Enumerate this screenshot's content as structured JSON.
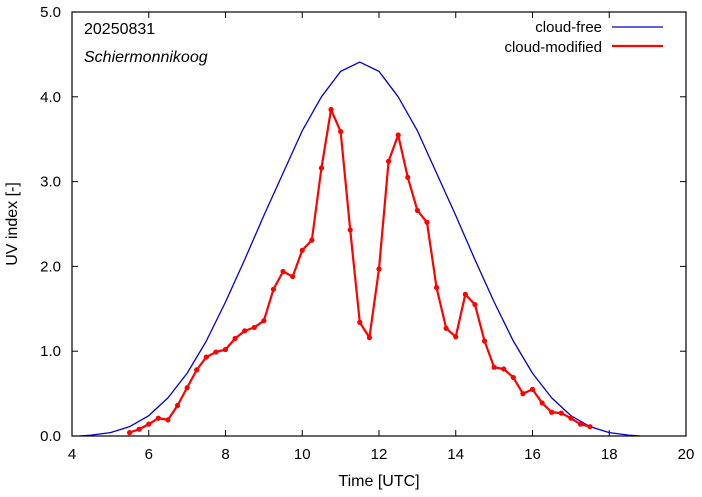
{
  "chart_data": {
    "type": "line",
    "xlabel": "Time  [UTC]",
    "ylabel": "UV index  [-]",
    "xlim": [
      4,
      20
    ],
    "ylim": [
      0,
      5
    ],
    "xticks": [
      4,
      6,
      8,
      10,
      12,
      14,
      16,
      18,
      20
    ],
    "yticks": [
      0,
      1,
      2,
      3,
      4,
      5
    ],
    "ytick_labels": [
      "0.0",
      "1.0",
      "2.0",
      "3.0",
      "4.0",
      "5.0"
    ],
    "grid": false,
    "legend_position": "top-right",
    "annotations": [
      "20250831",
      "Schiermonnikoog"
    ],
    "series": [
      {
        "name": "cloud-free",
        "color": "#0000cc",
        "style": "line",
        "x": [
          4.2,
          4.5,
          5.0,
          5.5,
          6.0,
          6.5,
          7.0,
          7.5,
          8.0,
          8.5,
          9.0,
          9.5,
          10.0,
          10.5,
          11.0,
          11.5,
          12.0,
          12.5,
          13.0,
          13.5,
          14.0,
          14.5,
          15.0,
          15.5,
          16.0,
          16.5,
          17.0,
          17.5,
          18.0,
          18.5,
          18.8
        ],
        "y": [
          0.0,
          0.01,
          0.04,
          0.11,
          0.24,
          0.45,
          0.74,
          1.12,
          1.58,
          2.08,
          2.6,
          3.1,
          3.6,
          4.0,
          4.3,
          4.41,
          4.3,
          4.0,
          3.6,
          3.1,
          2.6,
          2.08,
          1.58,
          1.12,
          0.74,
          0.45,
          0.24,
          0.11,
          0.04,
          0.01,
          0.0
        ]
      },
      {
        "name": "cloud-modified",
        "color": "#ff0000",
        "style": "line-markers",
        "x": [
          5.5,
          5.75,
          6.0,
          6.25,
          6.5,
          6.75,
          7.0,
          7.25,
          7.5,
          7.75,
          8.0,
          8.25,
          8.5,
          8.75,
          9.0,
          9.25,
          9.5,
          9.75,
          10.0,
          10.25,
          10.5,
          10.75,
          11.0,
          11.25,
          11.5,
          11.75,
          12.0,
          12.25,
          12.5,
          12.75,
          13.0,
          13.25,
          13.5,
          13.75,
          14.0,
          14.25,
          14.5,
          14.75,
          15.0,
          15.25,
          15.5,
          15.75,
          16.0,
          16.25,
          16.5,
          16.75,
          17.0,
          17.25,
          17.5
        ],
        "y": [
          0.04,
          0.08,
          0.14,
          0.21,
          0.19,
          0.36,
          0.57,
          0.78,
          0.93,
          0.99,
          1.02,
          1.15,
          1.24,
          1.28,
          1.36,
          1.73,
          1.94,
          1.88,
          2.19,
          2.31,
          3.16,
          3.85,
          3.59,
          2.43,
          1.34,
          1.16,
          1.97,
          3.24,
          3.55,
          3.05,
          2.66,
          2.52,
          1.75,
          1.27,
          1.17,
          1.67,
          1.55,
          1.12,
          0.81,
          0.79,
          0.69,
          0.5,
          0.55,
          0.39,
          0.28,
          0.27,
          0.21,
          0.14,
          0.11
        ]
      }
    ]
  }
}
